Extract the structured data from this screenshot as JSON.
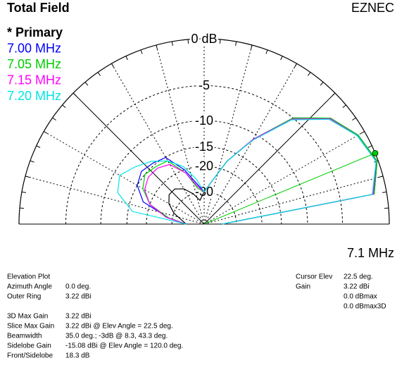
{
  "chart_data": {
    "type": "polar",
    "title": "Total Field",
    "program": "EZNEC",
    "frequency_label": "7.1 MHz",
    "r_scale": "arrl-log",
    "rlim": [
      -99,
      0
    ],
    "rticks": [
      {
        "value": 0,
        "label": "0 dB"
      },
      -5,
      -10,
      -15,
      -20,
      -30
    ],
    "xlim": [
      0,
      180
    ],
    "x": [
      0,
      10,
      20,
      30,
      40,
      50,
      60,
      70,
      80,
      90,
      100,
      110,
      120,
      130,
      140,
      150,
      160,
      170,
      180
    ],
    "series": [
      {
        "name": "* Primary",
        "color": "#000000",
        "values": [
          -40,
          -1.2,
          -0.1,
          -0.7,
          -2,
          -5,
          -11,
          -17.5,
          -25,
          -30,
          -35,
          -30,
          -26,
          -24,
          -24,
          -26,
          -30,
          -36,
          -40
        ]
      },
      {
        "name": "7.00 MHz",
        "color": "#0000ff",
        "values": [
          -40,
          -1.3,
          -0.1,
          -0.7,
          -2,
          -5,
          -11,
          -17.5,
          -25,
          -30,
          -26,
          -20,
          -15.1,
          -14.5,
          -14,
          -15,
          -18,
          -28,
          -40
        ]
      },
      {
        "name": "7.05 MHz",
        "color": "#00cc00",
        "values": [
          -40,
          -1.2,
          -0.1,
          -0.7,
          -2,
          -5,
          -11,
          -17.5,
          -25,
          -30,
          -28,
          -21,
          -16,
          -15.5,
          -15,
          -16.5,
          -20,
          -28,
          -40
        ]
      },
      {
        "name": "7.15 MHz",
        "color": "#ff00ff",
        "values": [
          -40,
          -1.3,
          -0.2,
          -0.8,
          -2.1,
          -5.2,
          -11,
          -17.5,
          -25,
          -30,
          -27,
          -21,
          -17,
          -16,
          -16,
          -17,
          -20,
          -27,
          -40
        ]
      },
      {
        "name": "7.20 MHz",
        "color": "#00e5e5",
        "values": [
          -40,
          -1.4,
          -0.2,
          -0.8,
          -2.2,
          -5.3,
          -11.2,
          -17.5,
          -25,
          -30,
          -24,
          -19,
          -16,
          -14,
          -12.5,
          -11,
          -12,
          -16,
          -40
        ]
      }
    ],
    "cursor": {
      "angle": 22.5,
      "value": 0,
      "color": "#00cc00"
    },
    "info_left": [
      {
        "label": "Elevation Plot"
      },
      {
        "label": "Azimuth Angle",
        "value": "0.0 deg."
      },
      {
        "label": "Outer Ring",
        "value": "3.22 dBi"
      }
    ],
    "info_stats": [
      {
        "label": "3D Max Gain",
        "value": "3.22 dBi"
      },
      {
        "label": "Slice Max Gain",
        "value": "3.22 dBi @ Elev Angle = 22.5 deg."
      },
      {
        "label": "Beamwidth",
        "value": "35.0 deg.; -3dB @ 8.3, 43.3 deg."
      },
      {
        "label": "Sidelobe Gain",
        "value": "-15.08 dBi @ Elev Angle = 120.0 deg."
      },
      {
        "label": "Front/Sidelobe",
        "value": "18.3 dB"
      }
    ],
    "info_right": [
      {
        "label": "Cursor Elev",
        "value": "22.5 deg."
      },
      {
        "label": "Gain",
        "value": "3.22 dBi"
      },
      {
        "value": "0.0 dBmax"
      },
      {
        "value": "0.0 dBmax3D"
      }
    ]
  }
}
